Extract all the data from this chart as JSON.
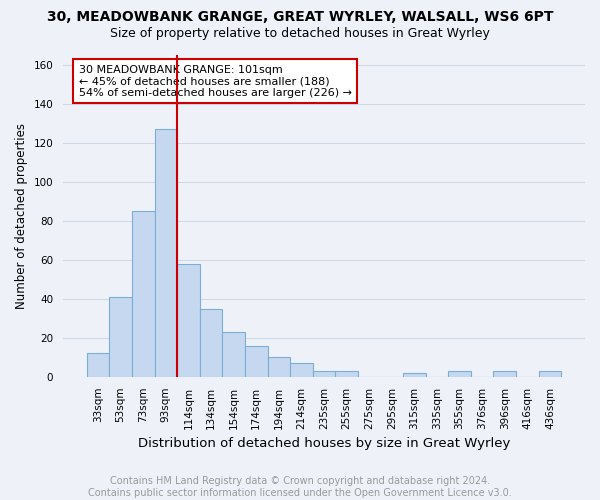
{
  "title1": "30, MEADOWBANK GRANGE, GREAT WYRLEY, WALSALL, WS6 6PT",
  "title2": "Size of property relative to detached houses in Great Wyrley",
  "xlabel": "Distribution of detached houses by size in Great Wyrley",
  "ylabel": "Number of detached properties",
  "footer": "Contains HM Land Registry data © Crown copyright and database right 2024.\nContains public sector information licensed under the Open Government Licence v3.0.",
  "bins": [
    "33sqm",
    "53sqm",
    "73sqm",
    "93sqm",
    "114sqm",
    "134sqm",
    "154sqm",
    "174sqm",
    "194sqm",
    "214sqm",
    "235sqm",
    "255sqm",
    "275sqm",
    "295sqm",
    "315sqm",
    "335sqm",
    "355sqm",
    "376sqm",
    "396sqm",
    "416sqm",
    "436sqm"
  ],
  "values": [
    12,
    41,
    85,
    127,
    58,
    35,
    23,
    16,
    10,
    7,
    3,
    3,
    0,
    0,
    2,
    0,
    3,
    0,
    3,
    0,
    3
  ],
  "bar_color": "#c5d8f0",
  "bar_edge_color": "#7aaed6",
  "annotation_text": "30 MEADOWBANK GRANGE: 101sqm\n← 45% of detached houses are smaller (188)\n54% of semi-detached houses are larger (226) →",
  "annotation_box_color": "#ffffff",
  "annotation_box_edge": "#cc0000",
  "vline_color": "#cc0000",
  "vline_x": 3.5,
  "ylim": [
    0,
    165
  ],
  "yticks": [
    0,
    20,
    40,
    60,
    80,
    100,
    120,
    140,
    160
  ],
  "background_color": "#eef2f8",
  "grid_color": "#d0d8e8",
  "title1_fontsize": 10,
  "title2_fontsize": 9,
  "xlabel_fontsize": 9.5,
  "ylabel_fontsize": 8.5,
  "tick_fontsize": 7.5,
  "footer_fontsize": 7,
  "annotation_fontsize": 8
}
